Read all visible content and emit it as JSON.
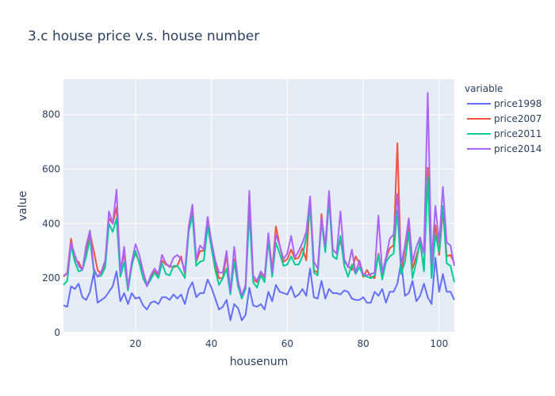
{
  "chart_data": {
    "type": "line",
    "title": "3.c house price v.s. house number",
    "xlabel": "housenum",
    "ylabel": "value",
    "xlim": [
      1,
      104
    ],
    "ylim": [
      0,
      930
    ],
    "xticks": [
      20,
      40,
      60,
      80,
      100
    ],
    "yticks": [
      0,
      200,
      400,
      600,
      800
    ],
    "grid": true,
    "legend_title": "variable",
    "legend_position": "right",
    "x": [
      1,
      2,
      3,
      4,
      5,
      6,
      7,
      8,
      9,
      10,
      11,
      12,
      13,
      14,
      15,
      16,
      17,
      18,
      19,
      20,
      21,
      22,
      23,
      24,
      25,
      26,
      27,
      28,
      29,
      30,
      31,
      32,
      33,
      34,
      35,
      36,
      37,
      38,
      39,
      40,
      41,
      42,
      43,
      44,
      45,
      46,
      47,
      48,
      49,
      50,
      51,
      52,
      53,
      54,
      55,
      56,
      57,
      58,
      59,
      60,
      61,
      62,
      63,
      64,
      65,
      66,
      67,
      68,
      69,
      70,
      71,
      72,
      73,
      74,
      75,
      76,
      77,
      78,
      79,
      80,
      81,
      82,
      83,
      84,
      85,
      86,
      87,
      88,
      89,
      90,
      91,
      92,
      93,
      94,
      95,
      96,
      97,
      98,
      99,
      100,
      101,
      102,
      103,
      104
    ],
    "series": [
      {
        "name": "price1998",
        "color": "#636efa",
        "values": [
          100,
          95,
          170,
          160,
          180,
          130,
          120,
          150,
          220,
          110,
          120,
          130,
          150,
          170,
          225,
          115,
          145,
          105,
          145,
          125,
          130,
          100,
          85,
          110,
          115,
          105,
          130,
          130,
          120,
          140,
          125,
          140,
          105,
          160,
          185,
          130,
          145,
          145,
          195,
          165,
          125,
          85,
          95,
          120,
          45,
          105,
          90,
          45,
          65,
          165,
          100,
          95,
          105,
          85,
          150,
          115,
          175,
          150,
          145,
          140,
          170,
          130,
          140,
          160,
          135,
          235,
          130,
          125,
          190,
          125,
          160,
          145,
          145,
          140,
          155,
          150,
          125,
          120,
          120,
          130,
          110,
          110,
          150,
          135,
          160,
          110,
          150,
          150,
          180,
          260,
          135,
          145,
          190,
          115,
          135,
          180,
          130,
          105,
          275,
          150,
          215,
          150,
          150,
          120
        ]
      },
      {
        "name": "price2007",
        "color": "#ef553b",
        "values": [
          205,
          220,
          345,
          265,
          260,
          230,
          290,
          365,
          300,
          230,
          215,
          260,
          420,
          400,
          460,
          230,
          290,
          165,
          255,
          290,
          260,
          225,
          175,
          205,
          225,
          210,
          265,
          250,
          245,
          240,
          245,
          280,
          215,
          380,
          450,
          260,
          300,
          300,
          395,
          325,
          245,
          200,
          200,
          285,
          145,
          270,
          180,
          135,
          160,
          510,
          195,
          185,
          220,
          200,
          355,
          230,
          390,
          320,
          260,
          270,
          305,
          270,
          275,
          310,
          265,
          490,
          230,
          220,
          435,
          300,
          490,
          305,
          290,
          340,
          260,
          245,
          230,
          280,
          255,
          205,
          230,
          205,
          200,
          290,
          200,
          270,
          310,
          320,
          695,
          215,
          310,
          395,
          235,
          280,
          330,
          230,
          605,
          260,
          395,
          285,
          445,
          280,
          285,
          255
        ]
      },
      {
        "name": "price2011",
        "color": "#00cc96",
        "values": [
          175,
          190,
          320,
          260,
          225,
          230,
          280,
          345,
          225,
          205,
          210,
          240,
          400,
          370,
          420,
          205,
          260,
          155,
          245,
          300,
          255,
          200,
          170,
          195,
          220,
          200,
          255,
          215,
          210,
          245,
          245,
          225,
          200,
          370,
          430,
          245,
          260,
          265,
          390,
          310,
          230,
          175,
          200,
          235,
          140,
          260,
          170,
          125,
          160,
          440,
          185,
          165,
          210,
          185,
          340,
          205,
          330,
          290,
          245,
          250,
          280,
          250,
          250,
          280,
          350,
          475,
          220,
          210,
          410,
          295,
          490,
          280,
          270,
          355,
          245,
          205,
          250,
          215,
          240,
          210,
          205,
          200,
          210,
          285,
          195,
          260,
          280,
          290,
          450,
          215,
          260,
          370,
          200,
          260,
          340,
          225,
          570,
          200,
          360,
          295,
          465,
          255,
          245,
          185
        ]
      },
      {
        "name": "price2014",
        "color": "#ab63fa",
        "values": [
          210,
          215,
          330,
          285,
          245,
          230,
          320,
          375,
          235,
          205,
          225,
          265,
          445,
          400,
          525,
          220,
          315,
          165,
          260,
          325,
          285,
          225,
          170,
          210,
          235,
          215,
          285,
          255,
          240,
          275,
          285,
          270,
          225,
          390,
          470,
          270,
          320,
          305,
          425,
          335,
          265,
          220,
          220,
          300,
          150,
          315,
          190,
          135,
          175,
          520,
          210,
          190,
          225,
          205,
          365,
          220,
          360,
          320,
          270,
          290,
          355,
          275,
          300,
          330,
          370,
          500,
          260,
          235,
          420,
          320,
          520,
          305,
          290,
          445,
          270,
          240,
          305,
          220,
          265,
          215,
          210,
          215,
          220,
          430,
          220,
          275,
          345,
          360,
          510,
          250,
          320,
          420,
          260,
          315,
          350,
          290,
          880,
          250,
          465,
          330,
          535,
          330,
          320,
          245
        ]
      }
    ]
  }
}
